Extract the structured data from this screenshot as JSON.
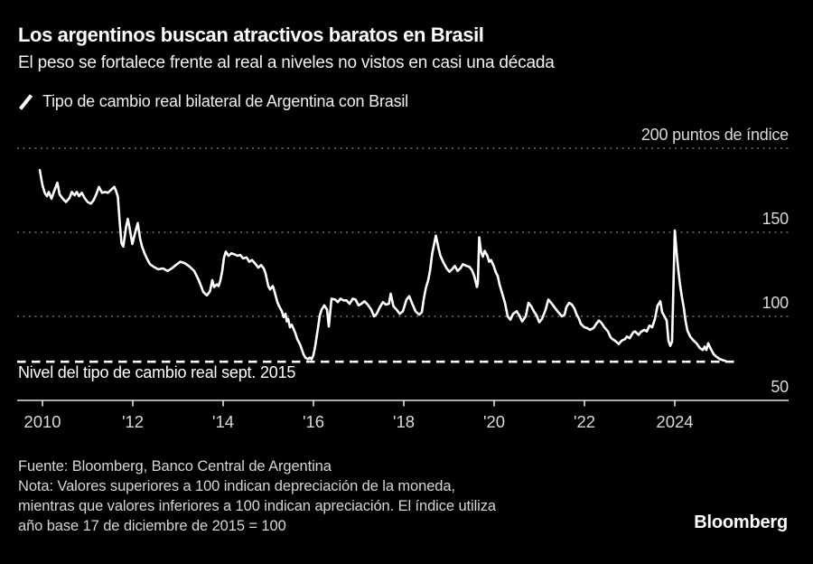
{
  "header": {
    "title": "Los argentinos buscan atractivos baratos en Brasil",
    "subtitle": "El peso se fortalece frente al real a niveles no vistos en casi una década"
  },
  "legend": {
    "label": "Tipo de cambio real bilateral de Argentina con Brasil"
  },
  "footer": {
    "source": "Fuente: Bloomberg, Banco Central de Argentina",
    "note_lines": [
      "Nota: Valores superiores a 100 indican depreciación de la moneda,",
      "mientras que valores inferiores a 100 indican apreciación. El índice utiliza",
      "año base 17 de diciembre de 2015 = 100"
    ],
    "logo": "Bloomberg"
  },
  "colors": {
    "background": "#000000",
    "title_text": "#ffffff",
    "axis_text": "#d9d9d9",
    "grid_dotted": "#707070",
    "series_line": "#ffffff",
    "baseline_dashed": "#ffffff",
    "axis_line": "#e6e6e6",
    "footer_text": "#d6d6d6"
  },
  "chart_data": {
    "type": "line",
    "title": "Tipo de cambio real bilateral de Argentina con Brasil",
    "ylabel": "puntos de índice",
    "grid": "horizontal-dotted",
    "legend_position": "top-left",
    "xlim": [
      2009.4,
      2026.5
    ],
    "ylim": [
      50,
      200
    ],
    "x_ticks": [
      {
        "year": 2010,
        "label": "2010"
      },
      {
        "year": 2012,
        "label": "'12"
      },
      {
        "year": 2014,
        "label": "'14"
      },
      {
        "year": 2016,
        "label": "'16"
      },
      {
        "year": 2018,
        "label": "'18"
      },
      {
        "year": 2020,
        "label": "'20"
      },
      {
        "year": 2022,
        "label": "'22"
      },
      {
        "year": 2024,
        "label": "2024"
      }
    ],
    "y_ticks": [
      {
        "value": 200,
        "label": "200 puntos de índice"
      },
      {
        "value": 150,
        "label": "150"
      },
      {
        "value": 100,
        "label": "100"
      },
      {
        "value": 50,
        "label": "50"
      }
    ],
    "baseline": {
      "value": 73,
      "label": "Nivel del tipo de cambio real sept. 2015",
      "x_start_year": 2009.44,
      "x_end_year": 2025.42
    },
    "series": [
      {
        "name": "Tipo de cambio real bilateral de Argentina con Brasil",
        "points": [
          [
            2009.94,
            187
          ],
          [
            2010.0,
            178
          ],
          [
            2010.05,
            173.5
          ],
          [
            2010.1,
            171.5
          ],
          [
            2010.14,
            174
          ],
          [
            2010.2,
            170
          ],
          [
            2010.28,
            176
          ],
          [
            2010.33,
            179.5
          ],
          [
            2010.38,
            172.5
          ],
          [
            2010.45,
            170
          ],
          [
            2010.52,
            168
          ],
          [
            2010.6,
            170.5
          ],
          [
            2010.65,
            174
          ],
          [
            2010.71,
            172
          ],
          [
            2010.76,
            174
          ],
          [
            2010.81,
            171.5
          ],
          [
            2010.87,
            173.5
          ],
          [
            2010.93,
            170.5
          ],
          [
            2011.0,
            168
          ],
          [
            2011.07,
            167
          ],
          [
            2011.13,
            169
          ],
          [
            2011.19,
            172.5
          ],
          [
            2011.25,
            177
          ],
          [
            2011.32,
            173.5
          ],
          [
            2011.39,
            174
          ],
          [
            2011.45,
            173.5
          ],
          [
            2011.53,
            175.5
          ],
          [
            2011.59,
            177
          ],
          [
            2011.63,
            174.5
          ],
          [
            2011.67,
            171
          ],
          [
            2011.71,
            156
          ],
          [
            2011.75,
            143.5
          ],
          [
            2011.79,
            141.5
          ],
          [
            2011.85,
            153
          ],
          [
            2011.89,
            158
          ],
          [
            2011.93,
            152.5
          ],
          [
            2011.99,
            143
          ],
          [
            2012.04,
            148.5
          ],
          [
            2012.11,
            155.5
          ],
          [
            2012.16,
            146.5
          ],
          [
            2012.2,
            142
          ],
          [
            2012.26,
            137.5
          ],
          [
            2012.32,
            134
          ],
          [
            2012.38,
            131
          ],
          [
            2012.46,
            129.5
          ],
          [
            2012.56,
            128
          ],
          [
            2012.67,
            128.5
          ],
          [
            2012.77,
            127
          ],
          [
            2012.86,
            128.5
          ],
          [
            2012.93,
            130
          ],
          [
            2013.05,
            132.5
          ],
          [
            2013.16,
            131.5
          ],
          [
            2013.26,
            129.5
          ],
          [
            2013.36,
            127
          ],
          [
            2013.46,
            121.5
          ],
          [
            2013.56,
            114.5
          ],
          [
            2013.64,
            112.5
          ],
          [
            2013.71,
            115
          ],
          [
            2013.76,
            121.5
          ],
          [
            2013.8,
            117.5
          ],
          [
            2013.86,
            119
          ],
          [
            2013.9,
            118
          ],
          [
            2013.94,
            121.5
          ],
          [
            2013.98,
            127
          ],
          [
            2014.02,
            135
          ],
          [
            2014.06,
            138.5
          ],
          [
            2014.12,
            136
          ],
          [
            2014.18,
            137.5
          ],
          [
            2014.24,
            137
          ],
          [
            2014.32,
            136
          ],
          [
            2014.38,
            136.5
          ],
          [
            2014.44,
            134.5
          ],
          [
            2014.52,
            135
          ],
          [
            2014.58,
            132.5
          ],
          [
            2014.64,
            133.5
          ],
          [
            2014.72,
            131
          ],
          [
            2014.78,
            129
          ],
          [
            2014.84,
            130.5
          ],
          [
            2014.9,
            128.5
          ],
          [
            2014.94,
            125.5
          ],
          [
            2015.0,
            118
          ],
          [
            2015.04,
            116
          ],
          [
            2015.1,
            118
          ],
          [
            2015.14,
            114.5
          ],
          [
            2015.2,
            108.5
          ],
          [
            2015.24,
            106
          ],
          [
            2015.3,
            103
          ],
          [
            2015.34,
            99.5
          ],
          [
            2015.38,
            101.5
          ],
          [
            2015.41,
            97
          ],
          [
            2015.44,
            98.5
          ],
          [
            2015.48,
            93.5
          ],
          [
            2015.52,
            95
          ],
          [
            2015.56,
            92.5
          ],
          [
            2015.6,
            90
          ],
          [
            2015.64,
            86.5
          ],
          [
            2015.7,
            83.5
          ],
          [
            2015.74,
            80.5
          ],
          [
            2015.78,
            77.5
          ],
          [
            2015.82,
            75.5
          ],
          [
            2015.88,
            74.5
          ],
          [
            2015.92,
            75.5
          ],
          [
            2015.96,
            74.5
          ],
          [
            2016.0,
            77
          ],
          [
            2016.04,
            82.5
          ],
          [
            2016.1,
            93
          ],
          [
            2016.14,
            100.5
          ],
          [
            2016.18,
            104
          ],
          [
            2016.24,
            106.5
          ],
          [
            2016.3,
            104
          ],
          [
            2016.34,
            94
          ],
          [
            2016.4,
            110.5
          ],
          [
            2016.48,
            110
          ],
          [
            2016.54,
            108.5
          ],
          [
            2016.6,
            110.5
          ],
          [
            2016.66,
            109.5
          ],
          [
            2016.73,
            109.5
          ],
          [
            2016.8,
            107.5
          ],
          [
            2016.87,
            110.5
          ],
          [
            2016.93,
            110
          ],
          [
            2017.0,
            106.5
          ],
          [
            2017.06,
            107.5
          ],
          [
            2017.13,
            109
          ],
          [
            2017.2,
            107
          ],
          [
            2017.28,
            104
          ],
          [
            2017.34,
            100
          ],
          [
            2017.4,
            101.5
          ],
          [
            2017.47,
            105.5
          ],
          [
            2017.54,
            108.5
          ],
          [
            2017.6,
            107
          ],
          [
            2017.67,
            107.5
          ],
          [
            2017.71,
            113.5
          ],
          [
            2017.77,
            106
          ],
          [
            2017.84,
            104
          ],
          [
            2017.91,
            101.5
          ],
          [
            2017.98,
            103
          ],
          [
            2018.06,
            110
          ],
          [
            2018.12,
            112
          ],
          [
            2018.18,
            108
          ],
          [
            2018.26,
            103
          ],
          [
            2018.34,
            101
          ],
          [
            2018.4,
            102.5
          ],
          [
            2018.44,
            110
          ],
          [
            2018.49,
            117
          ],
          [
            2018.54,
            121.5
          ],
          [
            2018.58,
            127
          ],
          [
            2018.63,
            137.5
          ],
          [
            2018.71,
            148
          ],
          [
            2018.77,
            140.5
          ],
          [
            2018.81,
            136
          ],
          [
            2018.87,
            132.5
          ],
          [
            2018.95,
            128.5
          ],
          [
            2019.01,
            126.5
          ],
          [
            2019.07,
            128
          ],
          [
            2019.13,
            130
          ],
          [
            2019.19,
            127
          ],
          [
            2019.25,
            128.5
          ],
          [
            2019.31,
            131
          ],
          [
            2019.39,
            130
          ],
          [
            2019.45,
            129.5
          ],
          [
            2019.51,
            127.5
          ],
          [
            2019.56,
            124
          ],
          [
            2019.62,
            117.5
          ],
          [
            2019.64,
            120
          ],
          [
            2019.67,
            147
          ],
          [
            2019.71,
            138.5
          ],
          [
            2019.75,
            135.5
          ],
          [
            2019.79,
            139
          ],
          [
            2019.85,
            136
          ],
          [
            2019.89,
            132.5
          ],
          [
            2019.93,
            133.5
          ],
          [
            2019.99,
            130
          ],
          [
            2020.04,
            126
          ],
          [
            2020.08,
            124
          ],
          [
            2020.12,
            119
          ],
          [
            2020.18,
            113.5
          ],
          [
            2020.24,
            108
          ],
          [
            2020.3,
            100
          ],
          [
            2020.36,
            98
          ],
          [
            2020.42,
            101.5
          ],
          [
            2020.5,
            103
          ],
          [
            2020.56,
            100.5
          ],
          [
            2020.62,
            97
          ],
          [
            2020.7,
            100
          ],
          [
            2020.76,
            108
          ],
          [
            2020.82,
            106
          ],
          [
            2020.88,
            103
          ],
          [
            2020.94,
            100.5
          ],
          [
            2021.0,
            96.5
          ],
          [
            2021.06,
            98.5
          ],
          [
            2021.14,
            104
          ],
          [
            2021.2,
            110
          ],
          [
            2021.28,
            107.5
          ],
          [
            2021.36,
            104.5
          ],
          [
            2021.42,
            102.5
          ],
          [
            2021.5,
            100
          ],
          [
            2021.56,
            101
          ],
          [
            2021.6,
            105.5
          ],
          [
            2021.66,
            108
          ],
          [
            2021.72,
            107
          ],
          [
            2021.78,
            104.5
          ],
          [
            2021.82,
            101.5
          ],
          [
            2021.88,
            98.5
          ],
          [
            2021.92,
            95.5
          ],
          [
            2022.0,
            93.5
          ],
          [
            2022.06,
            93
          ],
          [
            2022.12,
            92
          ],
          [
            2022.2,
            93
          ],
          [
            2022.26,
            95.5
          ],
          [
            2022.32,
            97.5
          ],
          [
            2022.38,
            96
          ],
          [
            2022.44,
            93.5
          ],
          [
            2022.52,
            91
          ],
          [
            2022.58,
            87.5
          ],
          [
            2022.62,
            86.5
          ],
          [
            2022.7,
            85
          ],
          [
            2022.76,
            83.5
          ],
          [
            2022.82,
            85.5
          ],
          [
            2022.9,
            86.5
          ],
          [
            2022.94,
            88
          ],
          [
            2023.0,
            87
          ],
          [
            2023.08,
            90.5
          ],
          [
            2023.12,
            91
          ],
          [
            2023.2,
            89
          ],
          [
            2023.24,
            90.5
          ],
          [
            2023.32,
            92
          ],
          [
            2023.38,
            91
          ],
          [
            2023.44,
            94.5
          ],
          [
            2023.5,
            93.5
          ],
          [
            2023.56,
            98.5
          ],
          [
            2023.62,
            106.5
          ],
          [
            2023.68,
            109
          ],
          [
            2023.72,
            102.5
          ],
          [
            2023.78,
            99.5
          ],
          [
            2023.82,
            97.5
          ],
          [
            2023.86,
            85.5
          ],
          [
            2023.9,
            82.5
          ],
          [
            2023.94,
            85
          ],
          [
            2024.0,
            151
          ],
          [
            2024.04,
            138
          ],
          [
            2024.08,
            127
          ],
          [
            2024.12,
            118
          ],
          [
            2024.16,
            111
          ],
          [
            2024.2,
            105
          ],
          [
            2024.24,
            97
          ],
          [
            2024.28,
            91.5
          ],
          [
            2024.34,
            88
          ],
          [
            2024.4,
            86
          ],
          [
            2024.48,
            84
          ],
          [
            2024.56,
            81
          ],
          [
            2024.62,
            80
          ],
          [
            2024.66,
            82
          ],
          [
            2024.7,
            80
          ],
          [
            2024.74,
            84
          ],
          [
            2024.8,
            80.5
          ],
          [
            2024.86,
            77.5
          ],
          [
            2024.92,
            76
          ],
          [
            2025.0,
            74.5
          ],
          [
            2025.06,
            74
          ],
          [
            2025.12,
            73.5
          ]
        ]
      }
    ]
  }
}
